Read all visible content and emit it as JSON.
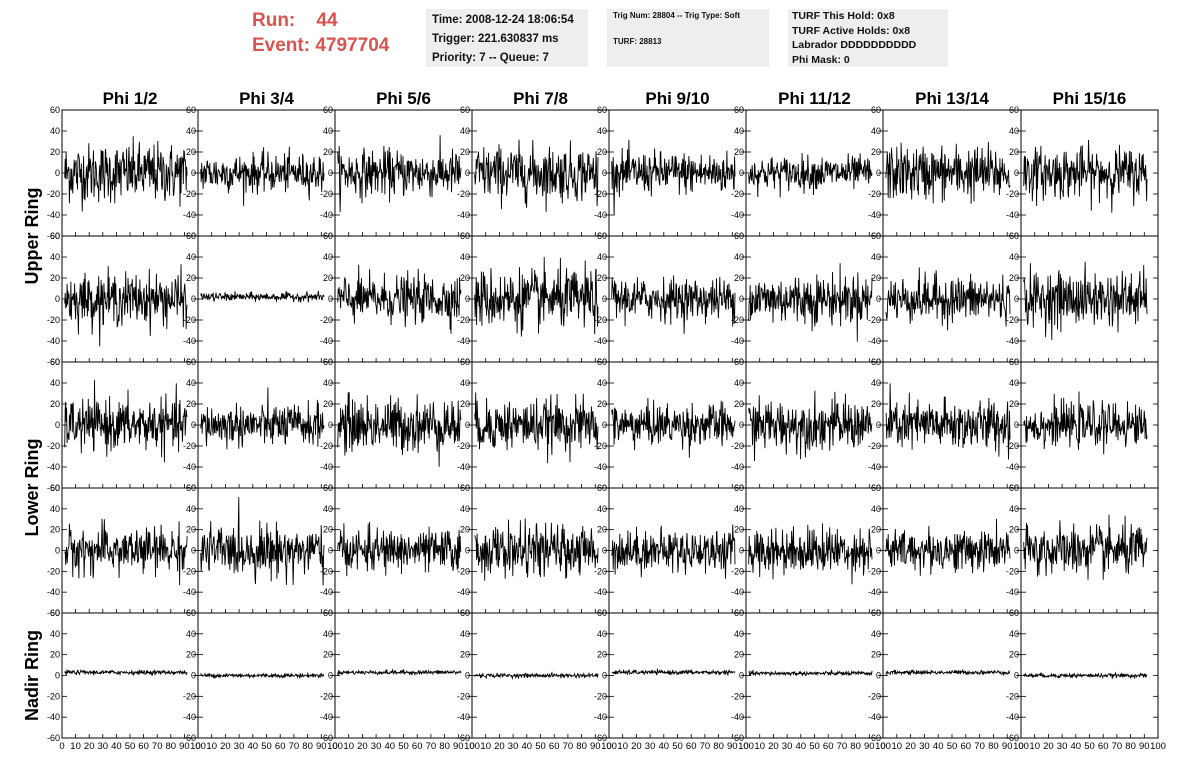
{
  "header": {
    "run_label": "Run:",
    "run_value": "44",
    "event_label": "Event:",
    "event_value": "4797704",
    "time": "Time: 2008-12-24 18:06:54",
    "trigger": "Trigger: 221.630837 ms",
    "priority": "Priority: 7 -- Queue: 7",
    "trig_num": "Trig Num: 28804 -- Trig Type: Soft",
    "turf": "TURF: 28813",
    "turf_this_hold": "TURF This Hold: 0x8",
    "turf_active_holds": "TURF Active Holds: 0x8",
    "labrador": "Labrador DDDDDDDDDD",
    "phi_mask": "Phi Mask: 0"
  },
  "colors": {
    "header_red": "#d9534f",
    "box_bg": "#eeeeee",
    "trace": "#000000"
  },
  "chart_data": {
    "type": "line",
    "columns": [
      "Phi 1/2",
      "Phi 3/4",
      "Phi 5/6",
      "Phi 7/8",
      "Phi 9/10",
      "Phi 11/12",
      "Phi 13/14",
      "Phi 15/16"
    ],
    "rows": [
      "Upper Ring",
      "Upper Ring",
      "Lower Ring",
      "Lower Ring",
      "Nadir Ring"
    ],
    "row_labels": [
      "Upper Ring",
      "Lower Ring",
      "Nadir Ring"
    ],
    "xlim": [
      0,
      100
    ],
    "ylim": [
      -60,
      60
    ],
    "xticks": [
      0,
      10,
      20,
      30,
      40,
      50,
      60,
      70,
      80,
      90,
      100
    ],
    "yticks": [
      -60,
      -40,
      -20,
      0,
      20,
      40,
      60
    ],
    "samples": 260,
    "rms": [
      [
        14,
        9,
        11,
        13,
        10,
        8,
        13,
        12
      ],
      [
        12,
        2,
        11,
        14,
        10,
        12,
        11,
        13
      ],
      [
        12,
        10,
        13,
        12,
        10,
        12,
        12,
        10
      ],
      [
        11,
        12,
        10,
        12,
        10,
        11,
        10,
        12
      ],
      [
        1,
        1,
        1,
        1,
        1,
        1,
        1,
        1
      ]
    ],
    "offset": [
      [
        0,
        0,
        0,
        0,
        0,
        0,
        0,
        0
      ],
      [
        0,
        2,
        0,
        0,
        0,
        0,
        0,
        0
      ],
      [
        0,
        0,
        0,
        0,
        0,
        0,
        0,
        0
      ],
      [
        0,
        0,
        0,
        0,
        0,
        0,
        0,
        0
      ],
      [
        3,
        0,
        3,
        0,
        3,
        2,
        3,
        0
      ]
    ]
  }
}
